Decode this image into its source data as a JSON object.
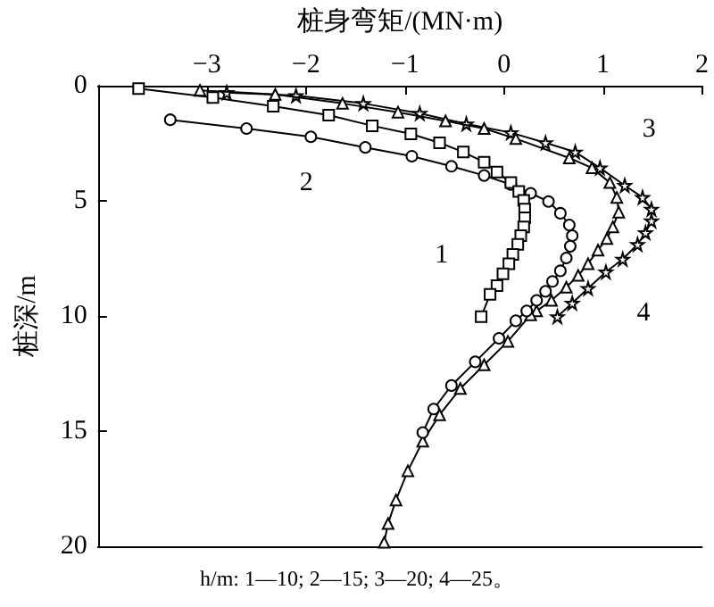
{
  "chart_data": {
    "type": "line",
    "xlabel": "桩身弯矩/(MN·m)",
    "ylabel": "桩深/m",
    "xlim": [
      -4.1,
      2
    ],
    "xticks": [
      -3,
      -2,
      -1,
      0,
      1,
      2
    ],
    "ylim": [
      20,
      0
    ],
    "yticks": [
      0,
      5,
      10,
      15,
      20
    ],
    "grid": false,
    "line_style": "solid",
    "series": [
      {
        "name": "1",
        "color": "#000000",
        "marker": "square",
        "x": [
          -3.69,
          -2.94,
          -2.33,
          -1.77,
          -1.33,
          -0.94,
          -0.65,
          -0.41,
          -0.2,
          -0.07,
          0.07,
          0.15,
          0.2,
          0.21,
          0.21,
          0.2,
          0.17,
          0.14,
          0.09,
          0.05,
          -0.01,
          -0.07,
          -0.14,
          -0.23
        ],
        "values": [
          0.13,
          0.51,
          0.89,
          1.28,
          1.74,
          2.09,
          2.48,
          2.88,
          3.32,
          3.75,
          4.21,
          4.59,
          4.98,
          5.36,
          5.74,
          6.13,
          6.51,
          6.89,
          7.33,
          7.73,
          8.17,
          8.68,
          9.06,
          10.03
        ]
      },
      {
        "name": "2",
        "color": "#000000",
        "marker": "circle",
        "x": [
          -3.37,
          -2.6,
          -1.95,
          -1.4,
          -0.93,
          -0.53,
          -0.2,
          0.07,
          0.27,
          0.45,
          0.57,
          0.66,
          0.69,
          0.67,
          0.63,
          0.57,
          0.49,
          0.42,
          0.33,
          0.23,
          0.12,
          -0.05,
          -0.29,
          -0.53,
          -0.71,
          -0.82
        ],
        "values": [
          1.48,
          1.86,
          2.22,
          2.68,
          3.06,
          3.5,
          3.9,
          4.29,
          4.67,
          5.03,
          5.54,
          6.05,
          6.51,
          6.97,
          7.48,
          8.04,
          8.5,
          8.93,
          9.32,
          9.78,
          10.21,
          10.97,
          11.99,
          13.02,
          14.04,
          15.06
        ]
      },
      {
        "name": "3",
        "color": "#000000",
        "marker": "triangle",
        "x": [
          -3.07,
          -2.31,
          -1.63,
          -1.07,
          -0.59,
          -0.2,
          0.12,
          0.66,
          0.89,
          1.07,
          1.14,
          1.16,
          1.1,
          1.04,
          0.95,
          0.85,
          0.75,
          0.63,
          0.48,
          0.33,
          0.27,
          0.04,
          -0.2,
          -0.44,
          -0.65,
          -0.82,
          -0.97,
          -1.09,
          -1.17,
          -1.21
        ],
        "values": [
          0.2,
          0.38,
          0.77,
          1.15,
          1.53,
          1.86,
          2.3,
          3.14,
          3.57,
          4.21,
          4.85,
          5.49,
          6.13,
          6.64,
          7.14,
          7.73,
          8.24,
          8.75,
          9.32,
          9.78,
          9.95,
          11.1,
          12.12,
          13.15,
          14.29,
          15.44,
          16.72,
          17.99,
          19.01,
          19.83
        ]
      },
      {
        "name": "4",
        "color": "#000000",
        "marker": "star",
        "x": [
          -2.8,
          -2.1,
          -1.42,
          -0.85,
          -0.38,
          0.07,
          0.42,
          0.72,
          0.97,
          1.22,
          1.4,
          1.49,
          1.49,
          1.43,
          1.35,
          1.2,
          1.03,
          0.85,
          0.69,
          0.54
        ],
        "values": [
          0.3,
          0.43,
          0.77,
          1.2,
          1.66,
          2.04,
          2.48,
          2.88,
          3.57,
          4.33,
          4.85,
          5.36,
          5.87,
          6.38,
          6.89,
          7.53,
          8.09,
          8.8,
          9.44,
          10.03
        ]
      }
    ],
    "annotations": [
      "h/m: 1—10; 2—15; 3—20; 4—25。"
    ]
  }
}
